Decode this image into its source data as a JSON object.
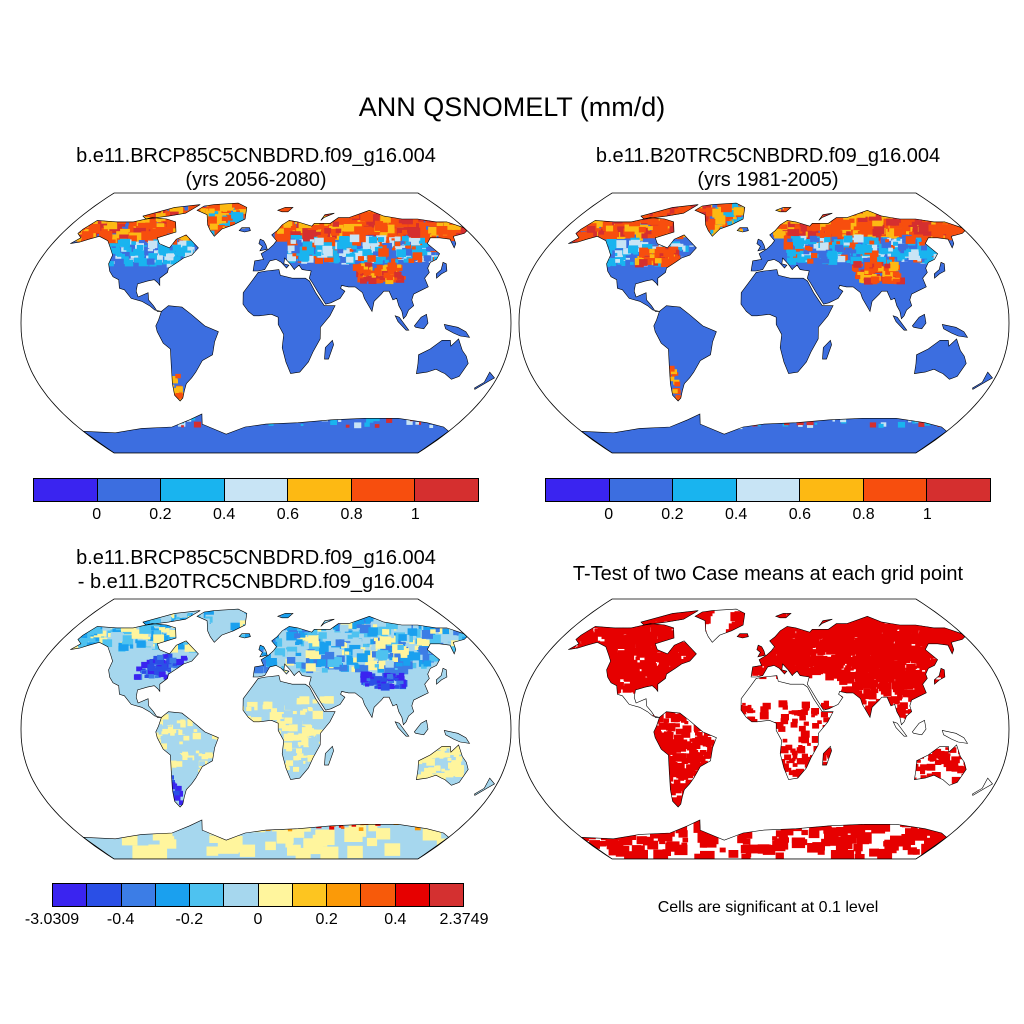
{
  "title": "ANN QSNOMELT (mm/d)",
  "panels": [
    {
      "id": "case1",
      "title_line1": "b.e11.BRCP85C5CNBDRD.f09_g16.004",
      "title_line2": "(yrs 2056-2080)"
    },
    {
      "id": "case2",
      "title_line1": "b.e11.B20TRC5CNBDRD.f09_g16.004",
      "title_line2": "(yrs 1981-2005)"
    },
    {
      "id": "diff",
      "title_line1": "b.e11.BRCP85C5CNBDRD.f09_g16.004",
      "title_line2": "- b.e11.B20TRC5CNBDRD.f09_g16.004"
    },
    {
      "id": "ttest",
      "title_line1": "T-Test of two Case means at each grid point"
    }
  ],
  "colorbar_main": {
    "colors": [
      "#3a24f0",
      "#3c6ee0",
      "#19b4ef",
      "#c8e4f5",
      "#fdb913",
      "#f74e0e",
      "#d52f2f"
    ],
    "labels": [
      "0",
      "0.2",
      "0.4",
      "0.6",
      "0.8",
      "1"
    ]
  },
  "colorbar_diff": {
    "colors": [
      "#3a24f0",
      "#2a4fe6",
      "#3c7de6",
      "#1aa0ef",
      "#4ec2f0",
      "#a6d7ee",
      "#fff59d",
      "#fdc520",
      "#fb9a08",
      "#f75a0a",
      "#e60000",
      "#d43030"
    ],
    "labels": [
      "-3.0309",
      "-0.4",
      "-0.2",
      "0",
      "0.2",
      "0.4",
      "2.3749"
    ]
  },
  "ttest_note": "Cells are significant at 0.1 level",
  "map_colors": {
    "ocean": "#ffffff",
    "land_base_case": "#3c6ee0",
    "land_base_diff": "#a6d7ee",
    "land_base_ttest": "#ffffff",
    "significant": "#e60000"
  }
}
